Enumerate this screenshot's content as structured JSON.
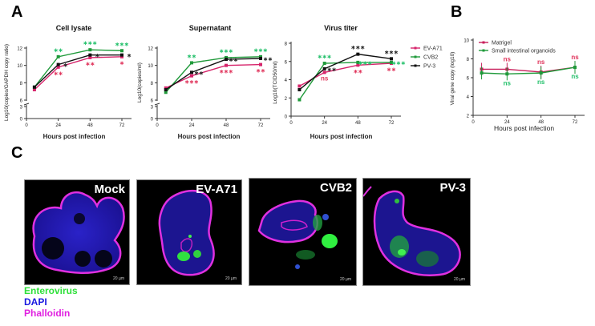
{
  "panels": {
    "A": "A",
    "B": "B",
    "C": "C"
  },
  "colors": {
    "ev_a71": "#d6246b",
    "cvb2": "#1f9a3a",
    "pv3": "#111111",
    "sig_green": "#22c06a",
    "sig_red": "#e0325a",
    "matrigel": "#c81e5a",
    "organoids": "#1f9a3a"
  },
  "chart_data": [
    {
      "type": "line",
      "title": "Cell lysate",
      "xlabel": "Hours post infection",
      "ylabel": "Log10(copies/GAPDH copy ratio)",
      "x": [
        6,
        24,
        48,
        72
      ],
      "xticks": [
        0,
        24,
        48,
        72
      ],
      "yticks": [
        0,
        3,
        6,
        8,
        10,
        12
      ],
      "ylim": [
        0,
        12
      ],
      "axis_break": [
        3,
        6
      ],
      "series": [
        {
          "name": "EV-A71",
          "values": [
            7.2,
            9.8,
            10.9,
            11.0
          ],
          "sig": [
            "",
            "**",
            "**",
            "*"
          ]
        },
        {
          "name": "CVB2",
          "values": [
            7.5,
            11.0,
            11.8,
            11.7
          ],
          "sig": [
            "",
            "**",
            "***",
            "***"
          ]
        },
        {
          "name": "PV-3",
          "values": [
            7.5,
            10.1,
            11.2,
            11.2
          ],
          "sig": [
            "",
            "*",
            "*",
            "*"
          ]
        }
      ]
    },
    {
      "type": "line",
      "title": "Supernatant",
      "xlabel": "Hours post infection",
      "ylabel": "Log10(copies/ml)",
      "x": [
        6,
        24,
        48,
        72
      ],
      "xticks": [
        0,
        24,
        48,
        72
      ],
      "yticks": [
        0,
        3,
        6,
        8,
        10,
        12
      ],
      "ylim": [
        0,
        12
      ],
      "axis_break": [
        3,
        6
      ],
      "series": [
        {
          "name": "EV-A71",
          "values": [
            7.4,
            8.8,
            10.0,
            10.1
          ],
          "sig": [
            "",
            "***",
            "***",
            "**"
          ]
        },
        {
          "name": "CVB2",
          "values": [
            6.9,
            10.3,
            10.9,
            11.0
          ],
          "sig": [
            "",
            "**",
            "***",
            "***"
          ]
        },
        {
          "name": "PV-3",
          "values": [
            7.2,
            9.2,
            10.7,
            10.8
          ],
          "sig": [
            "",
            "**",
            "**",
            "**"
          ]
        }
      ]
    },
    {
      "type": "line",
      "title": "Virus titer",
      "xlabel": "Hours post infection",
      "ylabel": "Log10(TCID50/ml)",
      "x": [
        6,
        24,
        48,
        72
      ],
      "xticks": [
        0,
        24,
        48,
        72
      ],
      "yticks": [
        0,
        2,
        4,
        6,
        8
      ],
      "ylim": [
        0,
        8
      ],
      "series": [
        {
          "name": "EV-A71",
          "values": [
            3.3,
            4.8,
            5.6,
            5.8
          ],
          "sig": [
            "",
            "ns",
            "**",
            "**"
          ]
        },
        {
          "name": "CVB2",
          "values": [
            1.8,
            5.8,
            5.9,
            5.9
          ],
          "sig": [
            "",
            "***",
            "***",
            "***"
          ]
        },
        {
          "name": "PV-3",
          "values": [
            2.9,
            5.2,
            6.8,
            6.3
          ],
          "sig": [
            "",
            "**",
            "***",
            "***"
          ]
        }
      ],
      "legend": [
        "EV-A71",
        "CVB2",
        "PV-3"
      ],
      "legend_position": "right"
    },
    {
      "type": "line",
      "title": "",
      "xlabel": "Hours post infection",
      "ylabel": "Viral gene copy (log10)",
      "x": [
        6,
        24,
        48,
        72
      ],
      "xticks": [
        0,
        24,
        48,
        72
      ],
      "yticks": [
        2,
        4,
        6,
        8,
        10
      ],
      "ylim": [
        2,
        10
      ],
      "series": [
        {
          "name": "Matrigel",
          "values": [
            6.9,
            6.9,
            6.6,
            7.1
          ],
          "sig": [
            "",
            "ns",
            "ns",
            "ns"
          ]
        },
        {
          "name": "Small intestinal organoids",
          "values": [
            6.5,
            6.4,
            6.5,
            7.1
          ],
          "sig": [
            "",
            "ns",
            "ns",
            "ns"
          ]
        }
      ],
      "legend": [
        "Matrigel",
        "Small intestinal organoids"
      ],
      "legend_position": "upper left"
    }
  ],
  "micrographs": [
    {
      "label": "Mock",
      "scale": "20 µm"
    },
    {
      "label": "EV-A71",
      "scale": "20 µm"
    },
    {
      "label": "CVB2",
      "scale": "20 µm"
    },
    {
      "label": "PV-3",
      "scale": "20 µm"
    }
  ],
  "stain_legend": [
    {
      "label": "Enterovirus",
      "color": "#2fe03a"
    },
    {
      "label": "DAPI",
      "color": "#1a1ae0"
    },
    {
      "label": "Phalloidin",
      "color": "#e020e0"
    }
  ]
}
